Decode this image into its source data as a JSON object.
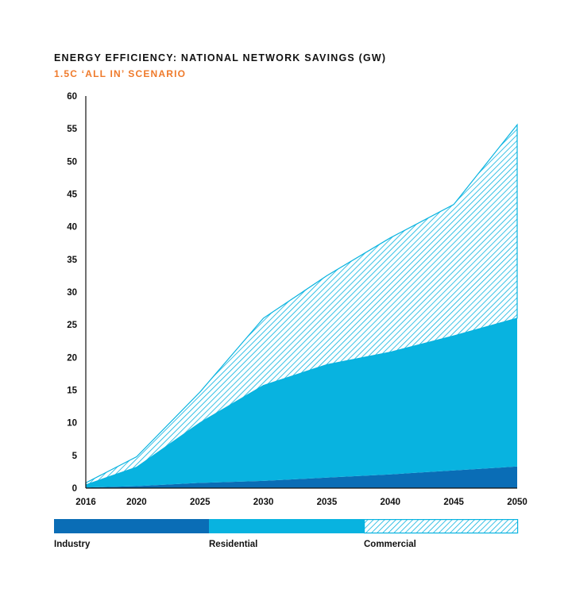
{
  "title": "ENERGY EFFICIENCY: NATIONAL NETWORK SAVINGS (GW)",
  "subtitle": "1.5C ‘ALL IN’ SCENARIO",
  "colors": {
    "industry": "#0a6db6",
    "residential": "#08b3e0",
    "commercial_stroke": "#08b3e0",
    "subtitle": "#ef7a2b",
    "axis": "#111111"
  },
  "chart_data": {
    "type": "area",
    "stacked": true,
    "title": "ENERGY EFFICIENCY: NATIONAL NETWORK SAVINGS (GW)",
    "subtitle": "1.5C ‘ALL IN’ SCENARIO",
    "x": [
      2016,
      2020,
      2025,
      2030,
      2035,
      2040,
      2045,
      2050
    ],
    "xticks": [
      "2016",
      "2020",
      "2025",
      "2030",
      "2035",
      "2040",
      "2045",
      "2050"
    ],
    "xlim": [
      2016,
      2050
    ],
    "ylim": [
      0,
      60
    ],
    "yticks": [
      "0",
      "5",
      "10",
      "15",
      "20",
      "25",
      "30",
      "35",
      "40",
      "45",
      "50",
      "55",
      "60"
    ],
    "grid": false,
    "legend_position": "bottom",
    "series": [
      {
        "name": "Industry",
        "pattern": "solid-dark",
        "values": [
          0.1,
          0.3,
          0.8,
          1.1,
          1.6,
          2.1,
          2.7,
          3.3
        ]
      },
      {
        "name": "Residential",
        "pattern": "solid-light",
        "values": [
          0.4,
          2.9,
          9.2,
          14.6,
          17.3,
          18.7,
          20.6,
          22.7
        ]
      },
      {
        "name": "Commercial",
        "pattern": "hatched",
        "values": [
          0.3,
          1.6,
          4.7,
          10.3,
          13.6,
          17.5,
          20.1,
          29.6
        ]
      }
    ]
  },
  "legend": [
    {
      "label": "Industry"
    },
    {
      "label": "Residential"
    },
    {
      "label": "Commercial"
    }
  ]
}
